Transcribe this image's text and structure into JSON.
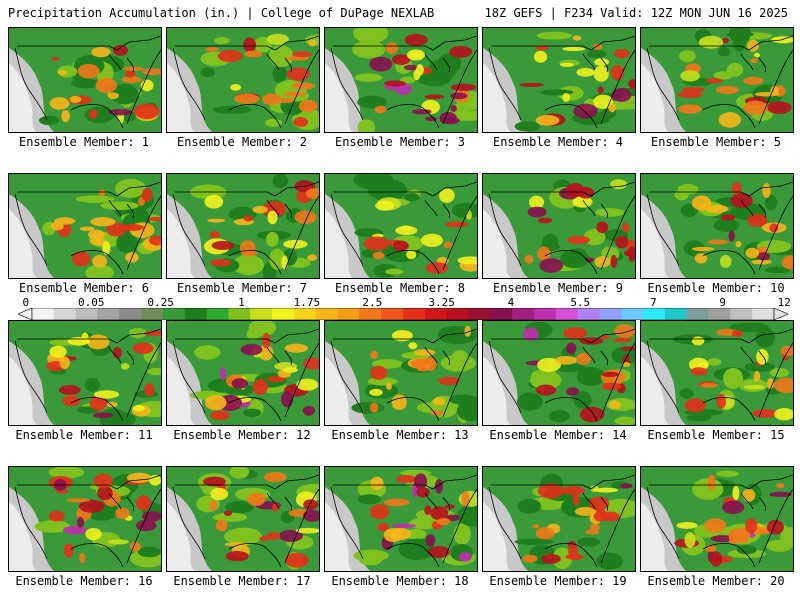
{
  "header": {
    "left": "Precipitation Accumulation (in.) | College of DuPage NEXLAB",
    "right": "18Z GEFS | F234 Valid: 12Z MON JUN 16 2025"
  },
  "colorbar": {
    "labels": [
      "0",
      "0.05",
      "0.25",
      "1",
      "1.75",
      "2.5",
      "3.25",
      "4",
      "5.5",
      "7",
      "9",
      "12"
    ],
    "colors": [
      "#f2f2f2",
      "#d6d6d6",
      "#bdbdbd",
      "#a3a3a3",
      "#8c8c8c",
      "#6e8f5a",
      "#3a9a3a",
      "#1f7f1f",
      "#2fa82f",
      "#7fc21f",
      "#c8e01f",
      "#f2f21f",
      "#f8d21a",
      "#f7b51a",
      "#f59a1a",
      "#f2781a",
      "#ef541a",
      "#e3301a",
      "#d0161a",
      "#b80f1f",
      "#980f2f",
      "#8a0f4f",
      "#a01f7f",
      "#c02fb0",
      "#d84fd8",
      "#b07ff0",
      "#8fa0f8",
      "#6fc8ff",
      "#2fe8f8",
      "#1fc8c8",
      "#7f9f9f",
      "#a0a0a0",
      "#c0c0c0",
      "#e0e0e0"
    ],
    "label_positions": [
      0.005,
      0.09,
      0.18,
      0.285,
      0.37,
      0.455,
      0.545,
      0.635,
      0.725,
      0.82,
      0.91,
      0.99
    ]
  },
  "members": [
    {
      "label": "Ensemble Member: 1",
      "intensity": 0.55
    },
    {
      "label": "Ensemble Member: 2",
      "intensity": 0.45
    },
    {
      "label": "Ensemble Member: 3",
      "intensity": 0.7
    },
    {
      "label": "Ensemble Member: 4",
      "intensity": 0.6
    },
    {
      "label": "Ensemble Member: 5",
      "intensity": 0.55
    },
    {
      "label": "Ensemble Member: 6",
      "intensity": 0.5
    },
    {
      "label": "Ensemble Member: 7",
      "intensity": 0.5
    },
    {
      "label": "Ensemble Member: 8",
      "intensity": 0.45
    },
    {
      "label": "Ensemble Member: 9",
      "intensity": 0.6
    },
    {
      "label": "Ensemble Member: 10",
      "intensity": 0.5
    },
    {
      "label": "Ensemble Member: 11",
      "intensity": 0.55
    },
    {
      "label": "Ensemble Member: 12",
      "intensity": 0.75
    },
    {
      "label": "Ensemble Member: 13",
      "intensity": 0.45
    },
    {
      "label": "Ensemble Member: 14",
      "intensity": 0.65
    },
    {
      "label": "Ensemble Member: 15",
      "intensity": 0.55
    },
    {
      "label": "Ensemble Member: 16",
      "intensity": 0.75
    },
    {
      "label": "Ensemble Member: 17",
      "intensity": 0.6
    },
    {
      "label": "Ensemble Member: 18",
      "intensity": 0.7
    },
    {
      "label": "Ensemble Member: 19",
      "intensity": 0.6
    },
    {
      "label": "Ensemble Member: 20",
      "intensity": 0.65
    }
  ]
}
